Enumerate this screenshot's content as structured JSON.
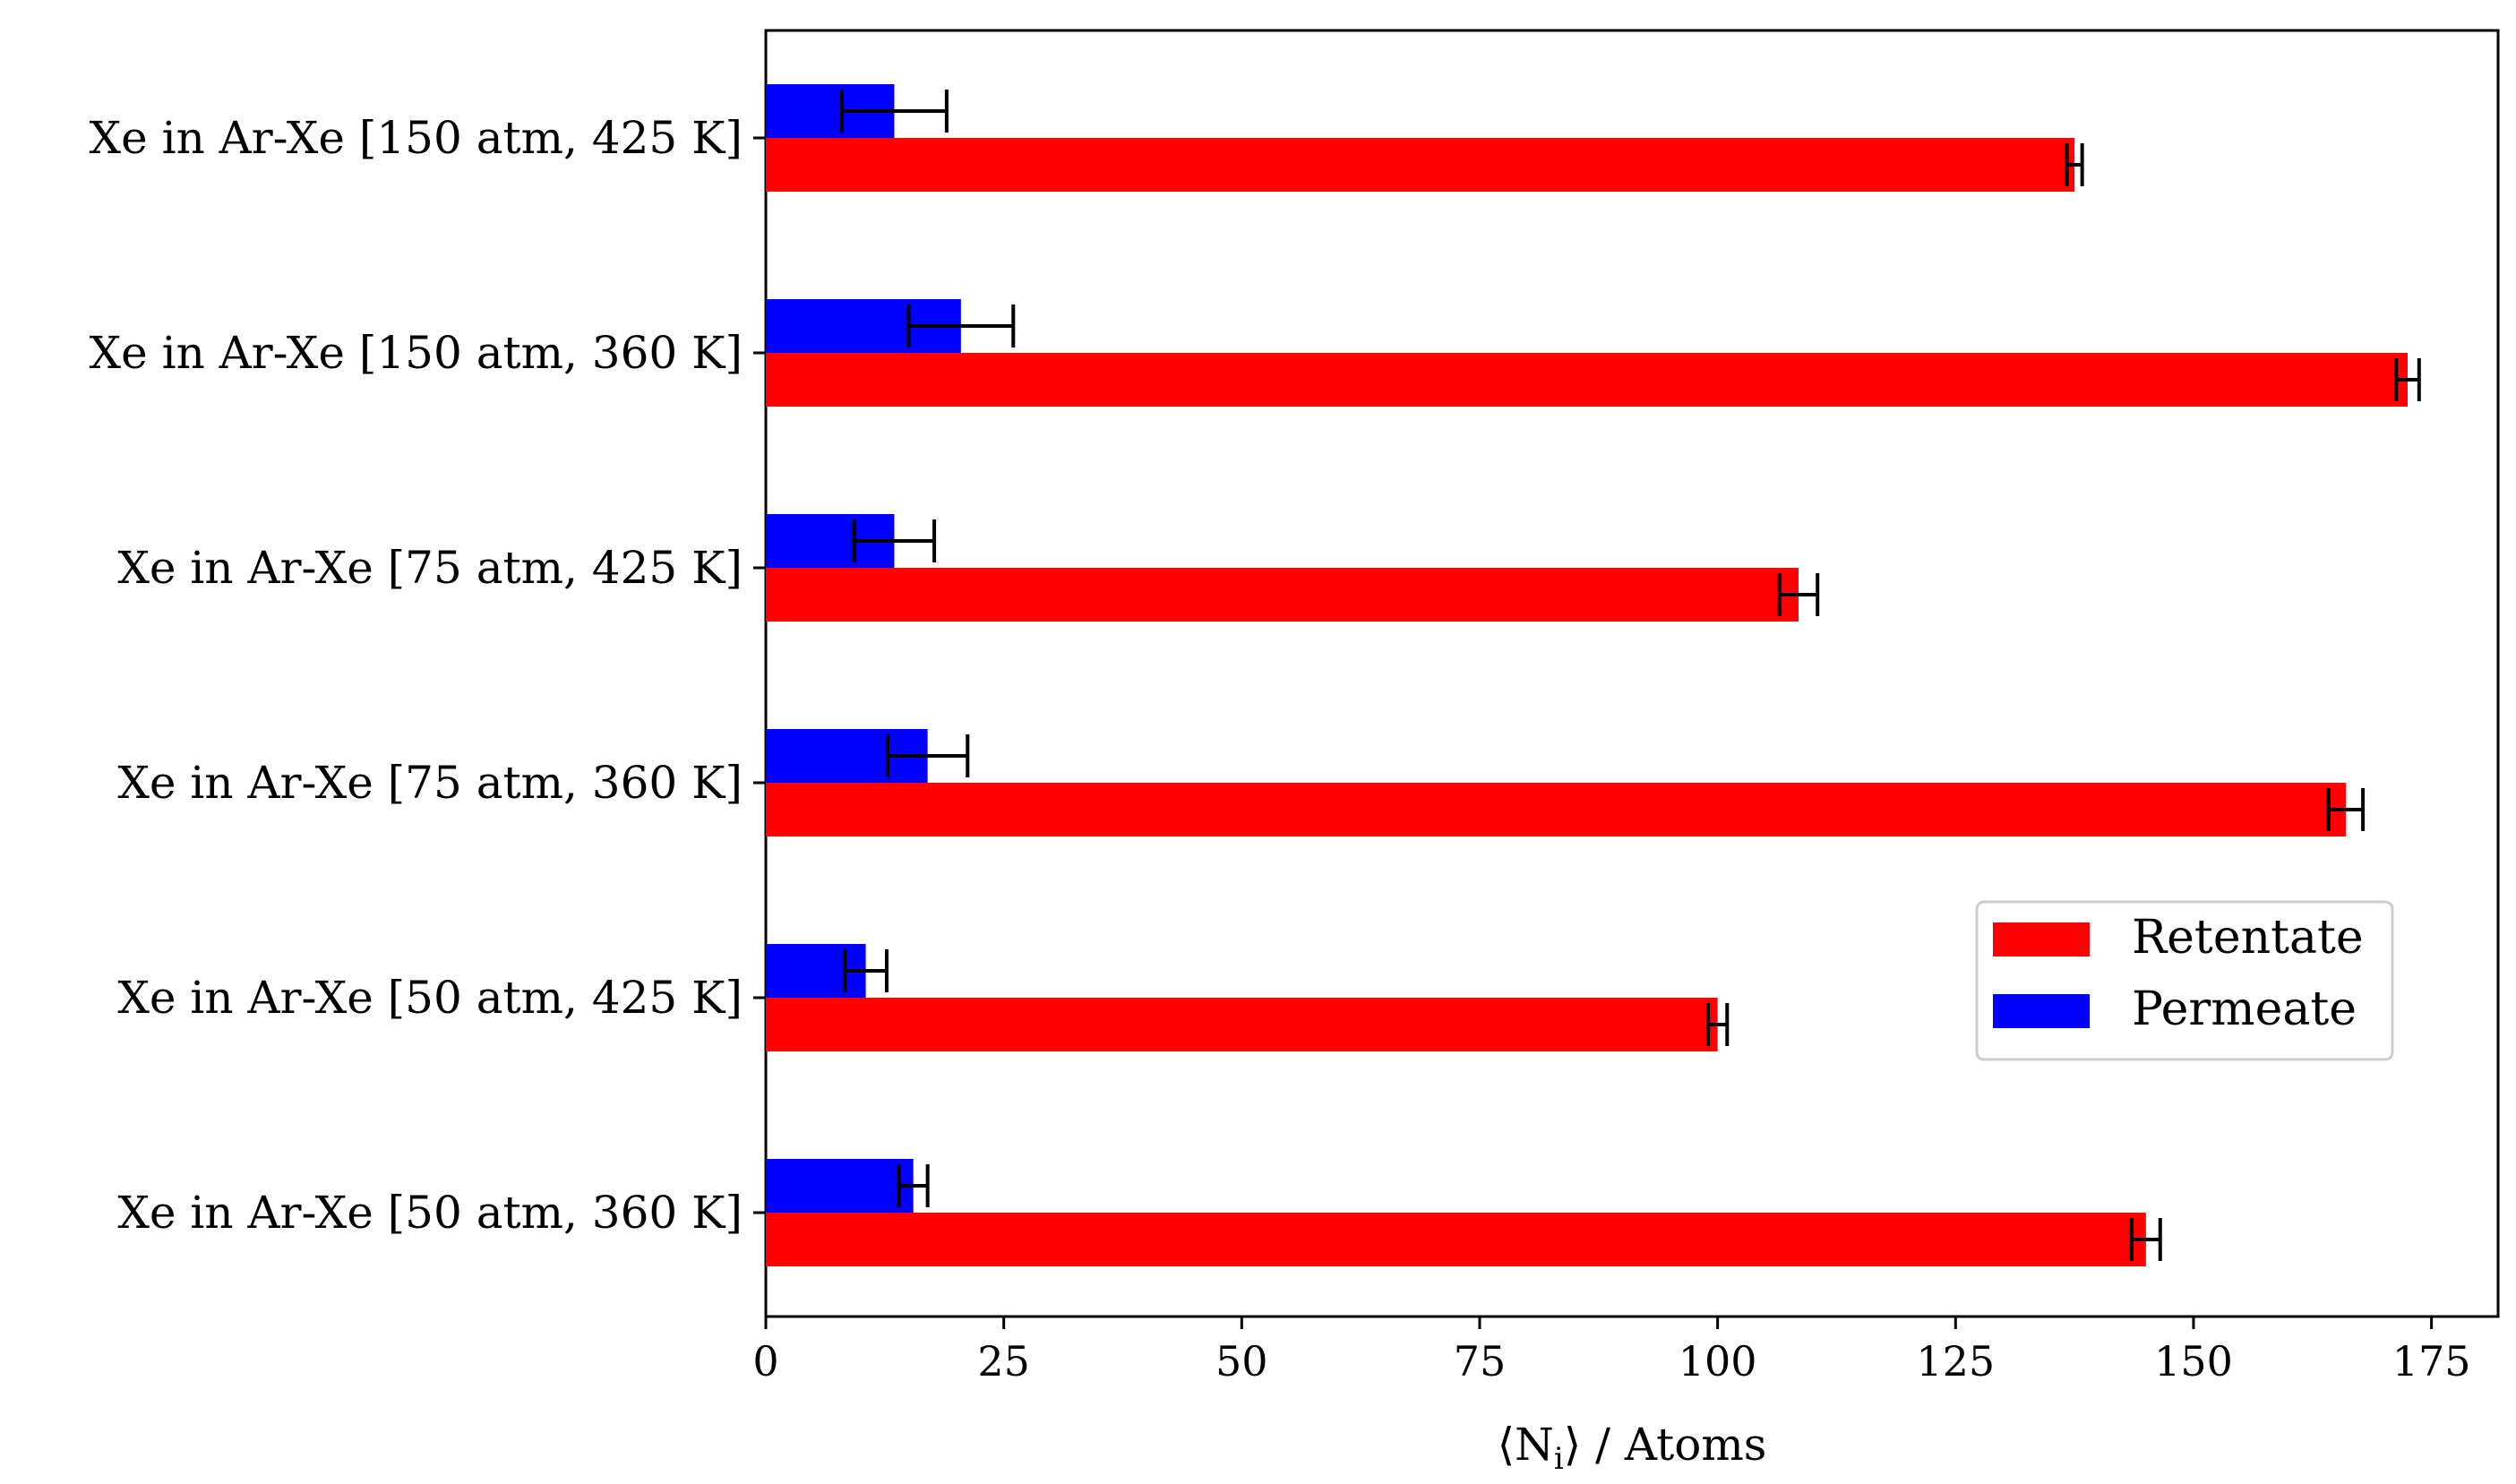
{
  "chart_data": {
    "type": "bar",
    "orientation": "horizontal",
    "xlabel": "⟨N_i⟩ / Atoms",
    "xlabel_parts": {
      "pre": "⟨N",
      "sub": "i",
      "post": "⟩ / Atoms"
    },
    "xlim": [
      0,
      182
    ],
    "xticks": [
      0,
      25,
      50,
      75,
      100,
      125,
      150,
      175
    ],
    "grid": false,
    "legend_position": "center-right",
    "categories": [
      "Xe in Ar-Xe [150 atm, 425 K]",
      "Xe in Ar-Xe [150 atm, 360 K]",
      "Xe in Ar-Xe [75 atm, 425 K]",
      "Xe in Ar-Xe [75 atm, 360 K]",
      "Xe in Ar-Xe [50 atm, 425 K]",
      "Xe in Ar-Xe [50 atm, 360 K]"
    ],
    "series": [
      {
        "name": "Retentate",
        "color": "#ff0000",
        "values": [
          137.5,
          172.5,
          108.5,
          166,
          100,
          145
        ],
        "errors": [
          0.8,
          1.2,
          2,
          1.8,
          1,
          1.5
        ]
      },
      {
        "name": "Permeate",
        "color": "#0000ff",
        "values": [
          13.5,
          20.5,
          13.5,
          17,
          10.5,
          15.5
        ],
        "errors": [
          5.5,
          5.5,
          4.2,
          4.2,
          2.2,
          1.5
        ]
      }
    ]
  }
}
